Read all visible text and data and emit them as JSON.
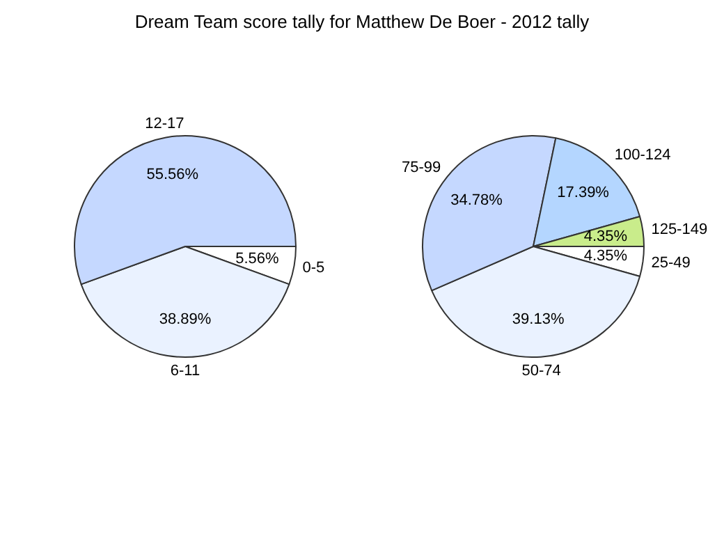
{
  "chart_data": [
    {
      "type": "pie",
      "title": "Dream Team score tally for Matthew De Boer - 2012 tally",
      "categories": [
        "0-5",
        "6-11",
        "12-17"
      ],
      "values": [
        5.56,
        38.89,
        55.56
      ],
      "colors": [
        "#ffffff",
        "#eaf2ff",
        "#c5d8ff"
      ],
      "value_labels": [
        "5.56%",
        "38.89%",
        "55.56%"
      ]
    },
    {
      "type": "pie",
      "categories": [
        "25-49",
        "50-74",
        "75-99",
        "100-124",
        "125-149"
      ],
      "values": [
        4.35,
        39.13,
        34.78,
        17.39,
        4.35
      ],
      "colors": [
        "#ffffff",
        "#eaf2ff",
        "#c5d8ff",
        "#b4d6ff",
        "#c9ec8b"
      ],
      "value_labels": [
        "4.35%",
        "39.13%",
        "34.78%",
        "17.39%",
        "4.35%"
      ]
    }
  ]
}
